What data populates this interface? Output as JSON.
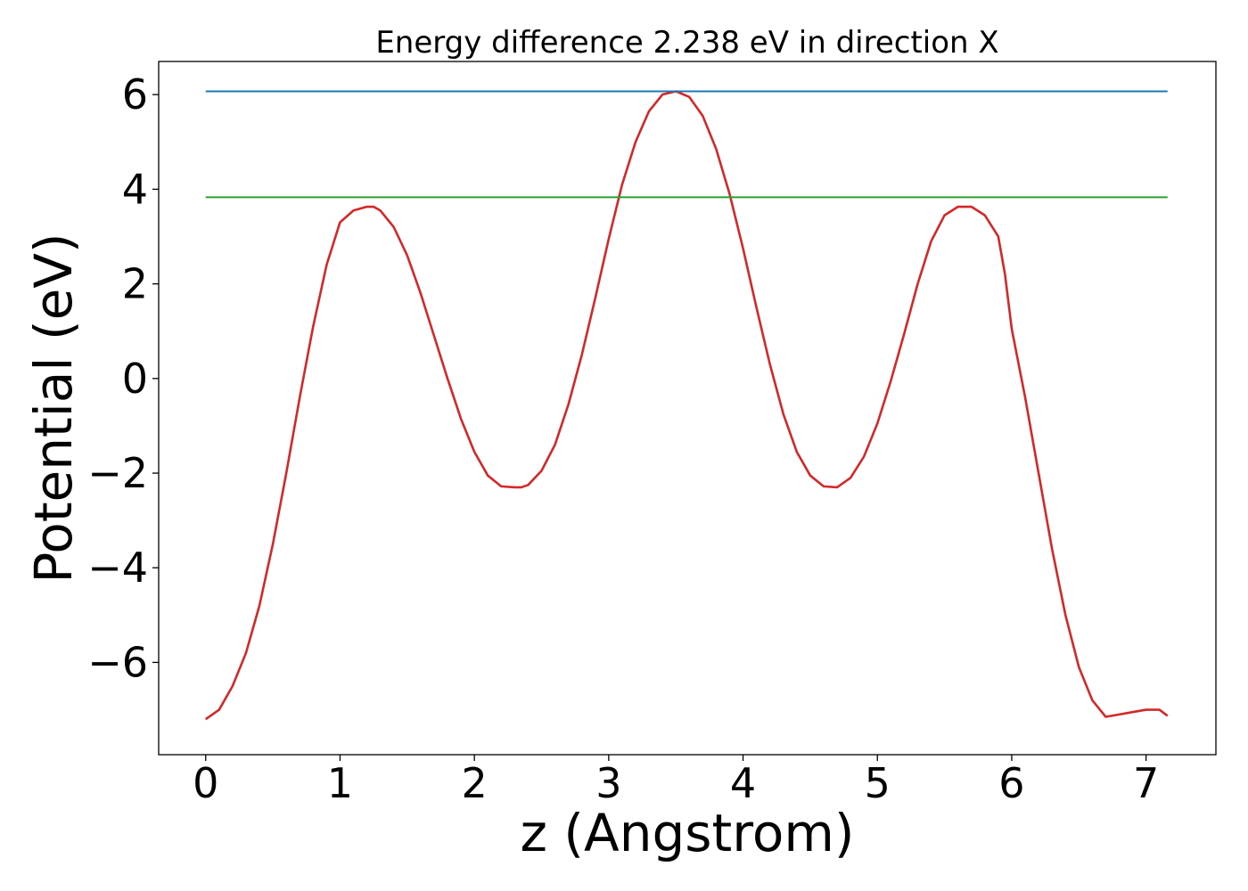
{
  "chart_data": {
    "type": "line",
    "title": "Energy difference 2.238 eV in direction X",
    "xlabel": "z (Angstrom)",
    "ylabel": "Potential (eV)",
    "xlim": [
      -0.35,
      7.52
    ],
    "ylim": [
      -7.95,
      6.7
    ],
    "xticks": [
      {
        "value": 0,
        "label": "0"
      },
      {
        "value": 1,
        "label": "1"
      },
      {
        "value": 2,
        "label": "2"
      },
      {
        "value": 3,
        "label": "3"
      },
      {
        "value": 4,
        "label": "4"
      },
      {
        "value": 5,
        "label": "5"
      },
      {
        "value": 6,
        "label": "6"
      },
      {
        "value": 7,
        "label": "7"
      }
    ],
    "yticks": [
      {
        "value": -6,
        "label": "−6"
      },
      {
        "value": -4,
        "label": "−4"
      },
      {
        "value": -2,
        "label": "−2"
      },
      {
        "value": 0,
        "label": "0"
      },
      {
        "value": 2,
        "label": "2"
      },
      {
        "value": 4,
        "label": "4"
      },
      {
        "value": 6,
        "label": "6"
      }
    ],
    "grid": false,
    "legend": "none",
    "series": [
      {
        "color": "#d62728",
        "x": [
          0.0,
          0.1,
          0.2,
          0.3,
          0.4,
          0.5,
          0.6,
          0.7,
          0.8,
          0.9,
          1.0,
          1.1,
          1.2,
          1.25,
          1.3,
          1.4,
          1.5,
          1.6,
          1.7,
          1.8,
          1.9,
          2.0,
          2.1,
          2.2,
          2.3,
          2.35,
          2.4,
          2.5,
          2.6,
          2.7,
          2.8,
          2.9,
          3.0,
          3.1,
          3.2,
          3.3,
          3.4,
          3.5,
          3.6,
          3.7,
          3.8,
          3.9,
          4.0,
          4.1,
          4.2,
          4.3,
          4.4,
          4.5,
          4.6,
          4.7,
          4.8,
          4.9,
          5.0,
          5.1,
          5.2,
          5.3,
          5.4,
          5.5,
          5.6,
          5.7,
          5.8,
          5.9,
          5.95,
          6.0,
          6.1,
          6.2,
          6.3,
          6.4,
          6.5,
          6.6,
          6.7,
          6.8,
          6.9,
          7.0,
          7.1,
          7.16
        ],
        "y": [
          -7.2,
          -7.0,
          -6.5,
          -5.8,
          -4.8,
          -3.5,
          -2.0,
          -0.4,
          1.1,
          2.4,
          3.3,
          3.55,
          3.63,
          3.63,
          3.55,
          3.2,
          2.6,
          1.8,
          0.9,
          0.0,
          -0.85,
          -1.55,
          -2.05,
          -2.28,
          -2.3,
          -2.3,
          -2.25,
          -1.95,
          -1.4,
          -0.55,
          0.5,
          1.7,
          2.95,
          4.1,
          5.0,
          5.65,
          6.0,
          6.07,
          5.95,
          5.55,
          4.85,
          3.9,
          2.75,
          1.5,
          0.3,
          -0.75,
          -1.55,
          -2.05,
          -2.28,
          -2.3,
          -2.1,
          -1.65,
          -0.95,
          -0.05,
          0.95,
          2.0,
          2.9,
          3.45,
          3.63,
          3.63,
          3.45,
          3.0,
          2.2,
          1.05,
          -0.4,
          -2.0,
          -3.6,
          -5.0,
          -6.1,
          -6.8,
          -7.15,
          -7.1,
          -7.05,
          -7.0,
          -7.0,
          -7.13
        ]
      },
      {
        "color": "#1f77b4",
        "x": [
          0.0,
          7.16
        ],
        "y": [
          6.07,
          6.07
        ]
      },
      {
        "color": "#2ca02c",
        "x": [
          0.0,
          7.16
        ],
        "y": [
          3.83,
          3.83
        ]
      }
    ]
  }
}
